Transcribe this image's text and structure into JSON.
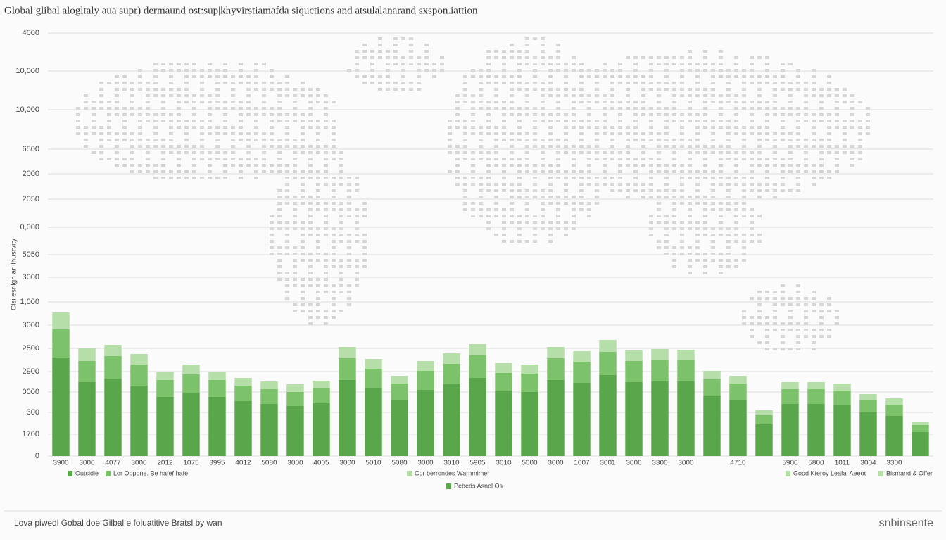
{
  "chart_data": {
    "type": "bar",
    "title": "Global glibal alogltaly aua supr) dermaund ost:sup|khyvirstiamafda siquctions and atsulalanarand sxspon.iattion",
    "y_label": "Clsi esrilgh ar ilhusrvity",
    "categories": [
      "3900",
      "3000",
      "4077",
      "3000",
      "2012",
      "1075",
      "3995",
      "4012",
      "5080",
      "3000",
      "4005",
      "3000",
      "5010",
      "5080",
      "3000",
      "3010",
      "5905",
      "3010",
      "5000",
      "3000",
      "1007",
      "3001",
      "3006",
      "3300",
      "3000",
      null,
      "4710",
      null,
      "5900",
      "5800",
      "1011",
      "3004",
      "3300",
      null
    ],
    "series": [
      {
        "name": "Outsidie",
        "color": "#5aa64a",
        "values": [
          140,
          105,
          110,
          100,
          84,
          90,
          84,
          78,
          74,
          71,
          75,
          108,
          96,
          80,
          94,
          102,
          111,
          92,
          91,
          108,
          104,
          115,
          105,
          106,
          106,
          85,
          80,
          45,
          74,
          74,
          72,
          62,
          57,
          34
        ]
      },
      {
        "name": "Lor Oppone. Be hafef hafe",
        "color": "#7cc26a",
        "values": [
          40,
          30,
          32,
          30,
          24,
          26,
          24,
          22,
          21,
          20,
          21,
          31,
          28,
          23,
          27,
          29,
          32,
          26,
          26,
          31,
          30,
          33,
          30,
          30,
          30,
          24,
          23,
          13,
          21,
          21,
          21,
          18,
          16,
          10
        ]
      },
      {
        "name": "Cor berrondes Warnmimer",
        "color": "#b5dea8",
        "values": [
          24,
          18,
          16,
          15,
          12,
          14,
          12,
          11,
          11,
          11,
          11,
          16,
          14,
          11,
          14,
          15,
          16,
          14,
          13,
          16,
          15,
          17,
          15,
          16,
          15,
          12,
          11,
          7,
          10,
          10,
          10,
          8,
          9,
          4
        ]
      }
    ],
    "legend_extra": [
      "Pebeds Asnel Os",
      "Good Kferoy Leafal Aeeot",
      "Bismand & Offer"
    ],
    "ylim": [
      0,
      601
    ],
    "yticks": [
      {
        "value": 601,
        "label": "4000"
      },
      {
        "value": 547,
        "label": "10,000"
      },
      {
        "value": 492,
        "label": "10,000"
      },
      {
        "value": 436,
        "label": "6500"
      },
      {
        "value": 401,
        "label": "2000"
      },
      {
        "value": 365,
        "label": "2050"
      },
      {
        "value": 325,
        "label": "0,000"
      },
      {
        "value": 286,
        "label": "5050"
      },
      {
        "value": 254,
        "label": "3000"
      },
      {
        "value": 219,
        "label": "1,000"
      },
      {
        "value": 186,
        "label": "3000"
      },
      {
        "value": 153,
        "label": "2500"
      },
      {
        "value": 120,
        "label": "2900"
      },
      {
        "value": 91,
        "label": "0000"
      },
      {
        "value": 62,
        "label": "300"
      },
      {
        "value": 31,
        "label": "1700"
      },
      0
    ],
    "grid": true,
    "footer": "Lova piwedl Gobal doe Gilbal e foluatitive Bratsl by wan",
    "brand": "snbinsente"
  }
}
